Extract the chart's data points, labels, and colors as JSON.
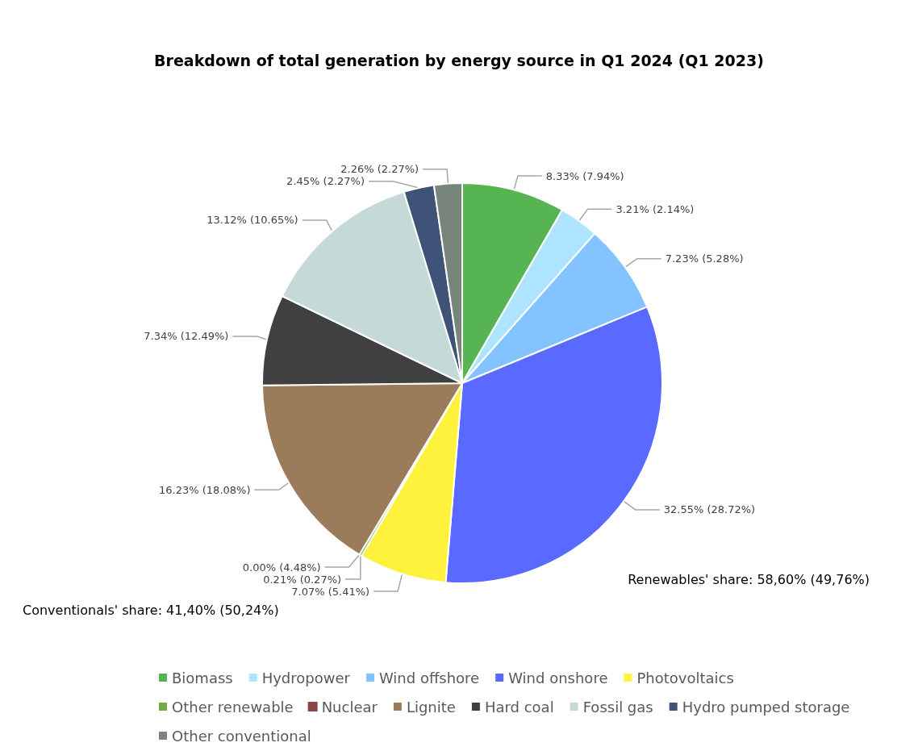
{
  "chart_data": {
    "type": "pie",
    "title": "Breakdown of total generation by energy source in Q1 2024 (Q1 2023)",
    "categories": [
      "Biomass",
      "Hydropower",
      "Wind offshore",
      "Wind onshore",
      "Photovoltaics",
      "Other renewable",
      "Nuclear",
      "Lignite",
      "Hard coal",
      "Fossil gas",
      "Hydro pumped storage",
      "Other conventional"
    ],
    "values": [
      8.33,
      3.21,
      7.23,
      32.55,
      7.07,
      0.21,
      0.0,
      16.23,
      7.34,
      13.12,
      2.45,
      2.26
    ],
    "value_labels": [
      "8.33% (7.94%)",
      "3.21% (2.14%)",
      "7.23% (5.28%)",
      "32.55% (28.72%)",
      "7.07% (5.41%)",
      "0.21% (0.27%)",
      "0.00% (4.48%)",
      "16.23% (18.08%)",
      "7.34% (12.49%)",
      "13.12% (10.65%)",
      "2.45% (2.27%)",
      "2.26% (2.27%)"
    ],
    "colors": [
      "#56b452",
      "#aee4ff",
      "#83c3ff",
      "#5a69ff",
      "#fff23c",
      "#70ad47",
      "#8b4444",
      "#9a7b5a",
      "#404040",
      "#c5d9d9",
      "#3f5277",
      "#78857a"
    ],
    "annotations": [
      "Renewables' share: 58,60% (49,76%)",
      "Conventionals' share: 41,40% (50,24%)"
    ],
    "legend": "bottom"
  }
}
